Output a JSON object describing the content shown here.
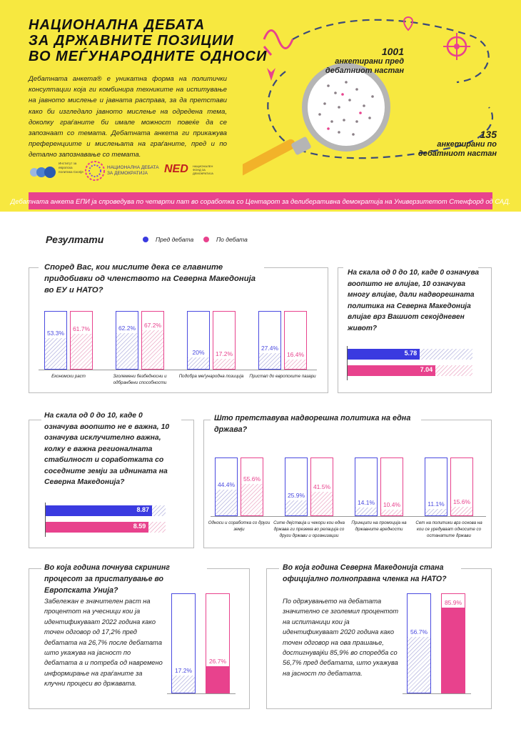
{
  "header": {
    "title_lines": [
      "НАЦИОНАЛНА ДЕБАТА",
      "ЗА ДРЖАВНИТЕ ПОЗИЦИИ",
      "ВО МЕЃУНАРОДНИТЕ ОДНОСИ"
    ],
    "intro": "Дебатната анкета® е уникатна форма на политички консултации која ги комбинира техниките на испитување на јавното мислење и јавната расправа, за да претстави како би изгледало јавното мислење на одредена тема, доколку граѓаните би имале можност повеќе да се запознаат со темата. Дебатната анкета ги прикажува преференциите и мислењата на граѓаните, пред и по детално запознавање со темата.",
    "stat_before_num": "1001",
    "stat_before_label_1": "анкетирани пред",
    "stat_before_label_2": "дебатниот настан",
    "stat_after_num": "135",
    "stat_after_label_1": "анкетирани по",
    "stat_after_label_2": "дебатниот настан",
    "logo1_text": "Институт за европска политика Скопје",
    "logo2_text_1": "НАЦИОНАЛНА ДЕБАТА",
    "logo2_text_2": "ЗА ДЕМОКРАТИЈА",
    "logo3_text": "NED",
    "logo3_sub": "НАЦИОНАЛЕН ФОНД ЗА ДЕМОКРАТИЈА",
    "banner": "Дебатната анкета ЕПИ ја спроведува по четврти пат во соработка со Центарот за делиберативна демократија на Универзитетот Стенфорд од САД."
  },
  "colors": {
    "blue": "#4a4ae0",
    "pink": "#e8428d",
    "yellow": "#f7e840"
  },
  "results": {
    "title": "Резултати",
    "legend_before": "Пред дебата",
    "legend_after": "По дебата"
  },
  "q1": {
    "question": "Според Вас, кои мислите дека се главните придобивки од членството на Северна Македонија во ЕУ и НАТО?",
    "categories": [
      "Економски раст",
      "Зголемени безбедносни и одбранбени способности",
      "Подобра меѓународна позиција",
      "Пристап до европските пазари"
    ],
    "before": [
      53.3,
      62.2,
      20,
      27.4
    ],
    "after": [
      61.7,
      67.2,
      17.2,
      16.4
    ],
    "before_labels": [
      "53.3%",
      "62.2%",
      "20%",
      "27.4%"
    ],
    "after_labels": [
      "61.7%",
      "67.2%",
      "17.2%",
      "16.4%"
    ]
  },
  "q2": {
    "question": "На скала од 0 до 10, каде 0 означува воопшто не влијае, 10 означува многу влијае, дали надворешната политика на Северна Македонија влијае врз Вашиот секојдневен живот?",
    "before": 5.78,
    "after": 7.04,
    "before_label": "5.78",
    "after_label": "7.04",
    "max": 10
  },
  "q3": {
    "question": "На скала од 0 до 10, каде 0 означува воопшто не е важна, 10 означува исклучително важна, колку е важна регионалната стабилност и соработката со соседните земји за иднината на Северна Македонија?",
    "before": 8.87,
    "after": 8.59,
    "before_label": "8.87",
    "after_label": "8.59",
    "max": 10
  },
  "q4": {
    "question": "Што претставува надворешна политика на една држава?",
    "categories": [
      "Односи и соработка со други земји",
      "Сите дејствија и чекори кои една држава ги презема во релација со други држави и организации",
      "Принципи на промоција на државните вредности",
      "Сет на политики врз основа на кои се уредуваат односите со останатите држави"
    ],
    "before": [
      44.4,
      25.9,
      14.1,
      11.1
    ],
    "after": [
      55.6,
      41.5,
      10.4,
      15.6
    ],
    "before_labels": [
      "44.4%",
      "25.9%",
      "14.1%",
      "11.1%"
    ],
    "after_labels": [
      "55.6%",
      "41.5%",
      "10.4%",
      "15.6%"
    ]
  },
  "q5": {
    "question": "Во која година почнува скрининг процесот за пристапување во Европската Унија?",
    "text": "Забележан е значителен раст на процентот на учесници кои ја идентификуваат 2022 година како точен одговор од 17,2% пред дебатата на 26,7% после дебатата што укажува на јасност по дебатата а и потреба од навремено информирање на граѓаните за клучни процеси во државата.",
    "before": 17.2,
    "after": 26.7,
    "before_label": "17.2%",
    "after_label": "26.7%"
  },
  "q6": {
    "question": "Во која година Северна Македонија стана официјално полноправна членка на НАТО?",
    "text": "По одржувањето на дебатата значително се зголемил процентот на испитаници кои ја идентификуваат 2020 година како точен одговор на ова прашање, достигнувајќи 85,9% во споредба со 56,7% пред дебатата, што укажува на јасност по дебатата.",
    "before": 56.7,
    "after": 85.9,
    "before_label": "56.7%",
    "after_label": "85.9%"
  }
}
